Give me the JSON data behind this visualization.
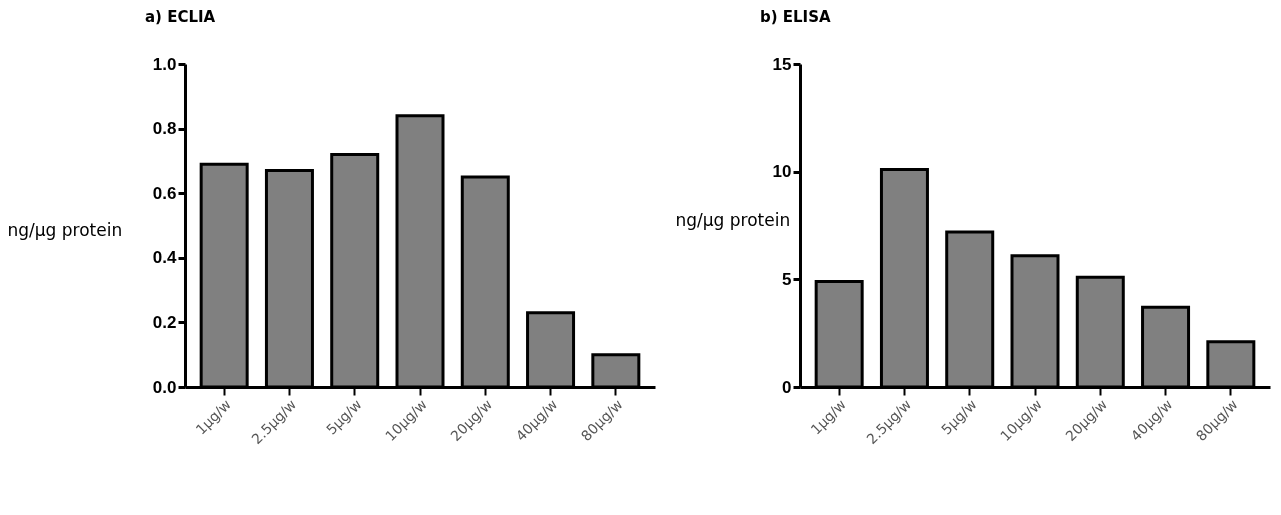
{
  "chart_data": [
    {
      "type": "bar",
      "title": "a)  ECLIA",
      "ylabel": "ng/µg protein",
      "categories": [
        "1µg/w",
        "2.5µg/w",
        "5µg/w",
        "10µg/w",
        "20µg/w",
        "40µg/w",
        "80µg/w"
      ],
      "values": [
        0.69,
        0.67,
        0.72,
        0.84,
        0.65,
        0.23,
        0.1
      ],
      "color": "#808080",
      "ylim": [
        0,
        1
      ],
      "yticks": [
        {
          "value": 0,
          "label": "0.0"
        },
        0.2,
        0.4,
        0.6,
        0.8,
        {
          "value": 1,
          "label": "1.0"
        }
      ],
      "grid": false
    },
    {
      "type": "bar",
      "title": "b)  ELISA",
      "ylabel": "ng/µg protein",
      "categories": [
        "1µg/w",
        "2.5µg/w",
        "5µg/w",
        "10µg/w",
        "20µg/w",
        "40µg/w",
        "80µg/w"
      ],
      "values": [
        4.9,
        10.1,
        7.2,
        6.1,
        5.1,
        3.7,
        2.1
      ],
      "color": "#808080",
      "ylim": [
        0,
        15
      ],
      "yticks": [
        0,
        5,
        10,
        15
      ],
      "grid": false
    }
  ]
}
